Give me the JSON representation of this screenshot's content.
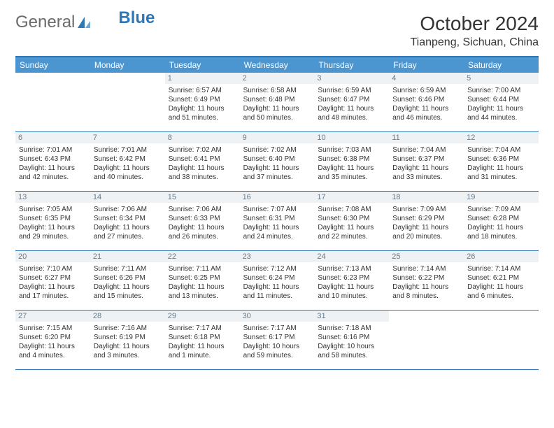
{
  "logo": {
    "text1": "General",
    "text2": "Blue",
    "sail_color": "#2f78b7"
  },
  "title": "October 2024",
  "location": "Tianpeng, Sichuan, China",
  "colors": {
    "header_bg": "#4b95d0",
    "border": "#2f78b7",
    "daynum_bg": "#eef2f5",
    "daynum_fg": "#6a7a88",
    "text": "#333333",
    "page_bg": "#ffffff"
  },
  "day_names": [
    "Sunday",
    "Monday",
    "Tuesday",
    "Wednesday",
    "Thursday",
    "Friday",
    "Saturday"
  ],
  "weeks": [
    [
      null,
      null,
      {
        "d": "1",
        "sr": "Sunrise: 6:57 AM",
        "ss": "Sunset: 6:49 PM",
        "dl": "Daylight: 11 hours and 51 minutes."
      },
      {
        "d": "2",
        "sr": "Sunrise: 6:58 AM",
        "ss": "Sunset: 6:48 PM",
        "dl": "Daylight: 11 hours and 50 minutes."
      },
      {
        "d": "3",
        "sr": "Sunrise: 6:59 AM",
        "ss": "Sunset: 6:47 PM",
        "dl": "Daylight: 11 hours and 48 minutes."
      },
      {
        "d": "4",
        "sr": "Sunrise: 6:59 AM",
        "ss": "Sunset: 6:46 PM",
        "dl": "Daylight: 11 hours and 46 minutes."
      },
      {
        "d": "5",
        "sr": "Sunrise: 7:00 AM",
        "ss": "Sunset: 6:44 PM",
        "dl": "Daylight: 11 hours and 44 minutes."
      }
    ],
    [
      {
        "d": "6",
        "sr": "Sunrise: 7:01 AM",
        "ss": "Sunset: 6:43 PM",
        "dl": "Daylight: 11 hours and 42 minutes."
      },
      {
        "d": "7",
        "sr": "Sunrise: 7:01 AM",
        "ss": "Sunset: 6:42 PM",
        "dl": "Daylight: 11 hours and 40 minutes."
      },
      {
        "d": "8",
        "sr": "Sunrise: 7:02 AM",
        "ss": "Sunset: 6:41 PM",
        "dl": "Daylight: 11 hours and 38 minutes."
      },
      {
        "d": "9",
        "sr": "Sunrise: 7:02 AM",
        "ss": "Sunset: 6:40 PM",
        "dl": "Daylight: 11 hours and 37 minutes."
      },
      {
        "d": "10",
        "sr": "Sunrise: 7:03 AM",
        "ss": "Sunset: 6:38 PM",
        "dl": "Daylight: 11 hours and 35 minutes."
      },
      {
        "d": "11",
        "sr": "Sunrise: 7:04 AM",
        "ss": "Sunset: 6:37 PM",
        "dl": "Daylight: 11 hours and 33 minutes."
      },
      {
        "d": "12",
        "sr": "Sunrise: 7:04 AM",
        "ss": "Sunset: 6:36 PM",
        "dl": "Daylight: 11 hours and 31 minutes."
      }
    ],
    [
      {
        "d": "13",
        "sr": "Sunrise: 7:05 AM",
        "ss": "Sunset: 6:35 PM",
        "dl": "Daylight: 11 hours and 29 minutes."
      },
      {
        "d": "14",
        "sr": "Sunrise: 7:06 AM",
        "ss": "Sunset: 6:34 PM",
        "dl": "Daylight: 11 hours and 27 minutes."
      },
      {
        "d": "15",
        "sr": "Sunrise: 7:06 AM",
        "ss": "Sunset: 6:33 PM",
        "dl": "Daylight: 11 hours and 26 minutes."
      },
      {
        "d": "16",
        "sr": "Sunrise: 7:07 AM",
        "ss": "Sunset: 6:31 PM",
        "dl": "Daylight: 11 hours and 24 minutes."
      },
      {
        "d": "17",
        "sr": "Sunrise: 7:08 AM",
        "ss": "Sunset: 6:30 PM",
        "dl": "Daylight: 11 hours and 22 minutes."
      },
      {
        "d": "18",
        "sr": "Sunrise: 7:09 AM",
        "ss": "Sunset: 6:29 PM",
        "dl": "Daylight: 11 hours and 20 minutes."
      },
      {
        "d": "19",
        "sr": "Sunrise: 7:09 AM",
        "ss": "Sunset: 6:28 PM",
        "dl": "Daylight: 11 hours and 18 minutes."
      }
    ],
    [
      {
        "d": "20",
        "sr": "Sunrise: 7:10 AM",
        "ss": "Sunset: 6:27 PM",
        "dl": "Daylight: 11 hours and 17 minutes."
      },
      {
        "d": "21",
        "sr": "Sunrise: 7:11 AM",
        "ss": "Sunset: 6:26 PM",
        "dl": "Daylight: 11 hours and 15 minutes."
      },
      {
        "d": "22",
        "sr": "Sunrise: 7:11 AM",
        "ss": "Sunset: 6:25 PM",
        "dl": "Daylight: 11 hours and 13 minutes."
      },
      {
        "d": "23",
        "sr": "Sunrise: 7:12 AM",
        "ss": "Sunset: 6:24 PM",
        "dl": "Daylight: 11 hours and 11 minutes."
      },
      {
        "d": "24",
        "sr": "Sunrise: 7:13 AM",
        "ss": "Sunset: 6:23 PM",
        "dl": "Daylight: 11 hours and 10 minutes."
      },
      {
        "d": "25",
        "sr": "Sunrise: 7:14 AM",
        "ss": "Sunset: 6:22 PM",
        "dl": "Daylight: 11 hours and 8 minutes."
      },
      {
        "d": "26",
        "sr": "Sunrise: 7:14 AM",
        "ss": "Sunset: 6:21 PM",
        "dl": "Daylight: 11 hours and 6 minutes."
      }
    ],
    [
      {
        "d": "27",
        "sr": "Sunrise: 7:15 AM",
        "ss": "Sunset: 6:20 PM",
        "dl": "Daylight: 11 hours and 4 minutes."
      },
      {
        "d": "28",
        "sr": "Sunrise: 7:16 AM",
        "ss": "Sunset: 6:19 PM",
        "dl": "Daylight: 11 hours and 3 minutes."
      },
      {
        "d": "29",
        "sr": "Sunrise: 7:17 AM",
        "ss": "Sunset: 6:18 PM",
        "dl": "Daylight: 11 hours and 1 minute."
      },
      {
        "d": "30",
        "sr": "Sunrise: 7:17 AM",
        "ss": "Sunset: 6:17 PM",
        "dl": "Daylight: 10 hours and 59 minutes."
      },
      {
        "d": "31",
        "sr": "Sunrise: 7:18 AM",
        "ss": "Sunset: 6:16 PM",
        "dl": "Daylight: 10 hours and 58 minutes."
      },
      null,
      null
    ]
  ]
}
